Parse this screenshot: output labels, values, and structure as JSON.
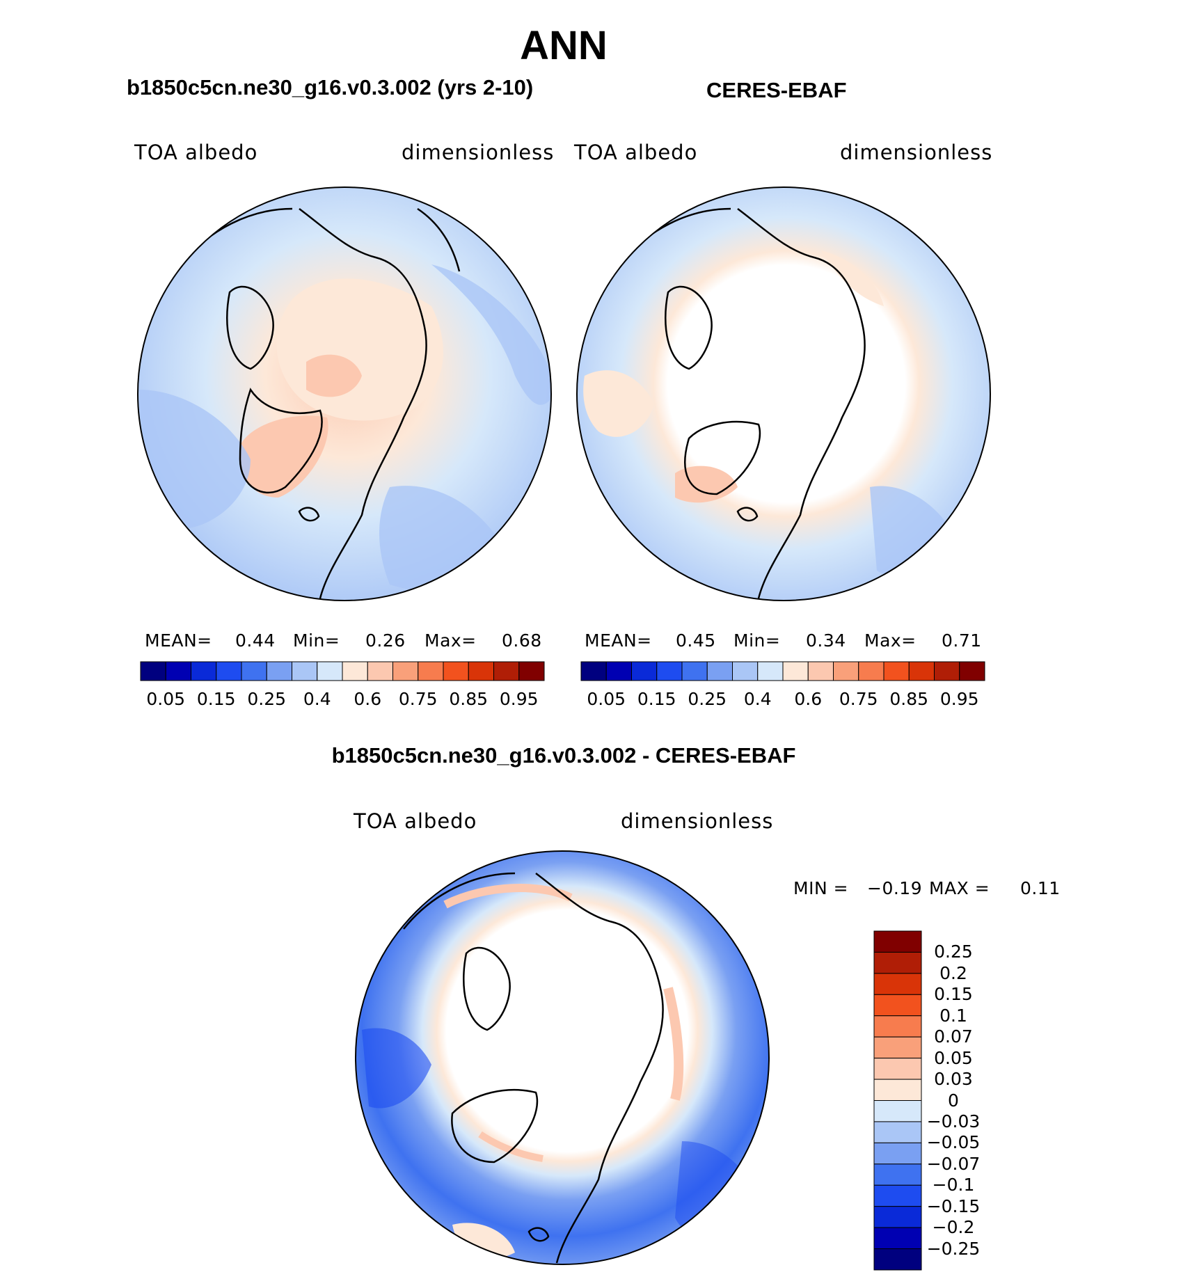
{
  "figure_title": "ANN",
  "panels": [
    {
      "id": "model",
      "subtitle": "b1850c5cn.ne30_g16.v0.3.002 (yrs 2-10)",
      "left_label": "TOA albedo",
      "right_label": "dimensionless",
      "stats": {
        "mean_label": "MEAN=",
        "mean": "0.44",
        "min_label": "Min=",
        "min": "0.26",
        "max_label": "Max=",
        "max": "0.68"
      }
    },
    {
      "id": "obs",
      "subtitle": "CERES-EBAF",
      "left_label": "TOA albedo",
      "right_label": "dimensionless",
      "stats": {
        "mean_label": "MEAN=",
        "mean": "0.45",
        "min_label": "Min=",
        "min": "0.34",
        "max_label": "Max=",
        "max": "0.71"
      }
    },
    {
      "id": "diff",
      "subtitle": "b1850c5cn.ne30_g16.v0.3.002 - CERES-EBAF",
      "left_label": "TOA albedo",
      "right_label": "dimensionless",
      "stats": {
        "min_label": "MIN =",
        "min": "−0.19",
        "max_label": "MAX =",
        "max": "0.11"
      }
    }
  ],
  "colorbar_top": {
    "colors": [
      "#00007f",
      "#0000b2",
      "#0a2ad8",
      "#1e4cf0",
      "#3f72f0",
      "#7aa0f2",
      "#aac6f6",
      "#d6e8fa",
      "#fde8d8",
      "#fcc8b0",
      "#f9a07a",
      "#f77c4e",
      "#f2521e",
      "#d93408",
      "#b01e06",
      "#800000"
    ],
    "tick_labels": [
      "0.05",
      "0.15",
      "0.25",
      "0.4",
      "0.6",
      "0.75",
      "0.85",
      "0.95"
    ]
  },
  "colorbar_diff": {
    "colors": [
      "#800000",
      "#b01e06",
      "#d93408",
      "#f2521e",
      "#f77c4e",
      "#f9a07a",
      "#fcc8b0",
      "#fde8d8",
      "#d6e8fa",
      "#aac6f6",
      "#7aa0f2",
      "#3f72f0",
      "#1e4cf0",
      "#0a2ad8",
      "#0000b2",
      "#00007f"
    ],
    "tick_labels": [
      "0.25",
      "0.2",
      "0.15",
      "0.1",
      "0.07",
      "0.05",
      "0.03",
      "0",
      "−0.03",
      "−0.05",
      "−0.07",
      "−0.1",
      "−0.15",
      "−0.2",
      "−0.25"
    ]
  },
  "chart_data": [
    {
      "type": "heatmap",
      "projection": "north-polar-stereographic",
      "title": "b1850c5cn.ne30_g16.v0.3.002 (yrs 2-10)",
      "variable": "TOA albedo",
      "units": "dimensionless",
      "mean": 0.44,
      "min": 0.26,
      "max": 0.68,
      "levels": [
        0.05,
        0.1,
        0.15,
        0.2,
        0.25,
        0.3,
        0.35,
        0.4,
        0.5,
        0.6,
        0.7,
        0.75,
        0.8,
        0.85,
        0.9,
        0.95
      ]
    },
    {
      "type": "heatmap",
      "projection": "north-polar-stereographic",
      "title": "CERES-EBAF",
      "variable": "TOA albedo",
      "units": "dimensionless",
      "mean": 0.45,
      "min": 0.34,
      "max": 0.71,
      "levels": [
        0.05,
        0.1,
        0.15,
        0.2,
        0.25,
        0.3,
        0.35,
        0.4,
        0.5,
        0.6,
        0.7,
        0.75,
        0.8,
        0.85,
        0.9,
        0.95
      ]
    },
    {
      "type": "heatmap",
      "projection": "north-polar-stereographic",
      "title": "b1850c5cn.ne30_g16.v0.3.002 - CERES-EBAF",
      "variable": "TOA albedo",
      "units": "dimensionless",
      "min": -0.19,
      "max": 0.11,
      "levels": [
        -0.25,
        -0.2,
        -0.15,
        -0.1,
        -0.07,
        -0.05,
        -0.03,
        0,
        0.03,
        0.05,
        0.07,
        0.1,
        0.15,
        0.2,
        0.25
      ]
    }
  ]
}
